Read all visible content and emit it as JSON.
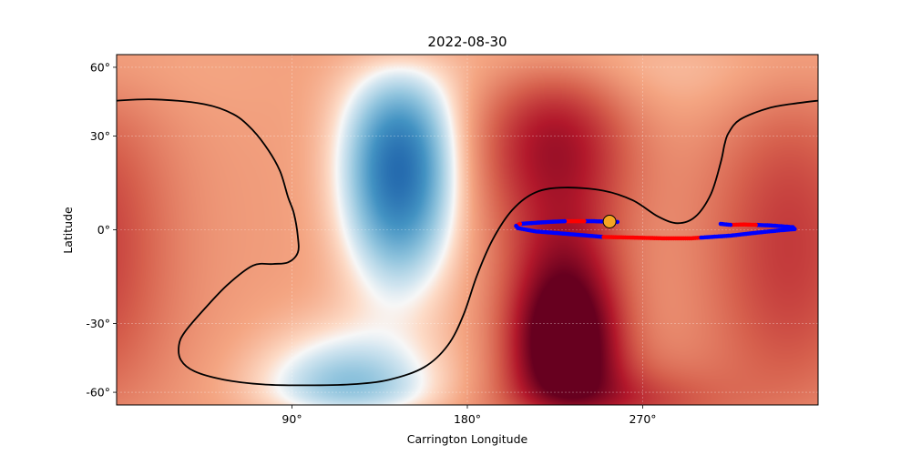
{
  "chart_data": {
    "type": "heatmap",
    "title": "2022-08-30",
    "xlabel": "Carrington Longitude",
    "ylabel": "Latitude",
    "xlim": [
      0,
      360
    ],
    "ylim": [
      -90,
      90
    ],
    "x_ticks": [
      {
        "value": 90,
        "label": "90°"
      },
      {
        "value": 180,
        "label": "180°"
      },
      {
        "value": 270,
        "label": "270°"
      }
    ],
    "y_ticks": [
      {
        "value": 60,
        "label": "60°"
      },
      {
        "value": 30,
        "label": "30°"
      },
      {
        "value": 0,
        "label": "0°"
      },
      {
        "value": -30,
        "label": "-30°"
      },
      {
        "value": -60,
        "label": "-60°"
      }
    ],
    "grid": true,
    "colormap": "RdBu_r",
    "colors": {
      "neutral_line": "#000000",
      "trajectory_positive": "#ff0000",
      "trajectory_negative": "#0000ff",
      "current_position": "#f5a623"
    },
    "field_blobs": [
      {
        "lon": 225,
        "lat": 28,
        "sigma_lon": 28,
        "sigma_lat": 22,
        "amp": 0.55
      },
      {
        "lon": 145,
        "lat": 18,
        "sigma_lon": 20,
        "sigma_lat": 24,
        "amp": -1.0
      },
      {
        "lon": 120,
        "lat": -55,
        "sigma_lon": 32,
        "sigma_lat": 16,
        "amp": -0.55
      },
      {
        "lon": 230,
        "lat": -35,
        "sigma_lon": 20,
        "sigma_lat": 22,
        "amp": 1.0
      },
      {
        "lon": 255,
        "lat": -65,
        "sigma_lon": 40,
        "sigma_lat": 14,
        "amp": 0.35
      },
      {
        "lon": 345,
        "lat": -5,
        "sigma_lon": 30,
        "sigma_lat": 40,
        "amp": 0.35
      },
      {
        "lon": 270,
        "lat": 55,
        "sigma_lon": 90,
        "sigma_lat": 18,
        "amp": -0.12
      }
    ],
    "neutral_line": [
      {
        "lon": 0,
        "lat": 43.5
      },
      {
        "lon": 20,
        "lat": 44
      },
      {
        "lon": 45,
        "lat": 42
      },
      {
        "lon": 60,
        "lat": 38
      },
      {
        "lon": 70,
        "lat": 32
      },
      {
        "lon": 78,
        "lat": 25
      },
      {
        "lon": 84,
        "lat": 18
      },
      {
        "lon": 88,
        "lat": 10
      },
      {
        "lon": 91,
        "lat": 5
      },
      {
        "lon": 93,
        "lat": -2
      },
      {
        "lon": 93,
        "lat": -7
      },
      {
        "lon": 88,
        "lat": -10
      },
      {
        "lon": 80,
        "lat": -10.5
      },
      {
        "lon": 70,
        "lat": -11
      },
      {
        "lon": 57,
        "lat": -17
      },
      {
        "lon": 45,
        "lat": -25
      },
      {
        "lon": 35,
        "lat": -33
      },
      {
        "lon": 32,
        "lat": -38
      },
      {
        "lon": 33,
        "lat": -44
      },
      {
        "lon": 40,
        "lat": -49
      },
      {
        "lon": 55,
        "lat": -53
      },
      {
        "lon": 75,
        "lat": -55.5
      },
      {
        "lon": 95,
        "lat": -56
      },
      {
        "lon": 120,
        "lat": -55.5
      },
      {
        "lon": 140,
        "lat": -53
      },
      {
        "lon": 158,
        "lat": -47
      },
      {
        "lon": 170,
        "lat": -38
      },
      {
        "lon": 178,
        "lat": -27
      },
      {
        "lon": 185,
        "lat": -14
      },
      {
        "lon": 193,
        "lat": -3
      },
      {
        "lon": 203,
        "lat": 6
      },
      {
        "lon": 215,
        "lat": 11.5
      },
      {
        "lon": 230,
        "lat": 13
      },
      {
        "lon": 250,
        "lat": 12
      },
      {
        "lon": 265,
        "lat": 9
      },
      {
        "lon": 278,
        "lat": 4
      },
      {
        "lon": 288,
        "lat": 2
      },
      {
        "lon": 297,
        "lat": 4
      },
      {
        "lon": 305,
        "lat": 11
      },
      {
        "lon": 310,
        "lat": 21
      },
      {
        "lon": 312,
        "lat": 27
      },
      {
        "lon": 314,
        "lat": 31
      },
      {
        "lon": 320,
        "lat": 36
      },
      {
        "lon": 335,
        "lat": 40.5
      },
      {
        "lon": 350,
        "lat": 42.5
      },
      {
        "lon": 360,
        "lat": 43.5
      }
    ],
    "trajectory": [
      {
        "lon": 257,
        "lat": 2.4,
        "polarity": "blue"
      },
      {
        "lon": 245,
        "lat": 2.6,
        "polarity": "blue"
      },
      {
        "lon": 240,
        "lat": 2.6,
        "polarity": "red"
      },
      {
        "lon": 230,
        "lat": 2.6,
        "polarity": "blue"
      },
      {
        "lon": 222,
        "lat": 2.4,
        "polarity": "blue"
      },
      {
        "lon": 212,
        "lat": 2.0,
        "polarity": "blue"
      },
      {
        "lon": 207,
        "lat": 1.8,
        "polarity": "red"
      },
      {
        "lon": 205,
        "lat": 1.2,
        "polarity": "blue"
      },
      {
        "lon": 206,
        "lat": 0.5,
        "polarity": "blue"
      },
      {
        "lon": 215,
        "lat": -0.5,
        "polarity": "blue"
      },
      {
        "lon": 230,
        "lat": -1.2,
        "polarity": "blue"
      },
      {
        "lon": 242,
        "lat": -1.8,
        "polarity": "blue"
      },
      {
        "lon": 250,
        "lat": -2.2,
        "polarity": "red"
      },
      {
        "lon": 265,
        "lat": -2.4,
        "polarity": "red"
      },
      {
        "lon": 280,
        "lat": -2.6,
        "polarity": "red"
      },
      {
        "lon": 295,
        "lat": -2.6,
        "polarity": "red"
      },
      {
        "lon": 300,
        "lat": -2.4,
        "polarity": "blue"
      },
      {
        "lon": 315,
        "lat": -1.8,
        "polarity": "blue"
      },
      {
        "lon": 330,
        "lat": -0.8,
        "polarity": "blue"
      },
      {
        "lon": 340,
        "lat": -0.2,
        "polarity": "blue"
      },
      {
        "lon": 348,
        "lat": 0.2,
        "polarity": "blue"
      },
      {
        "lon": 347,
        "lat": 0.8,
        "polarity": "blue"
      },
      {
        "lon": 336,
        "lat": 1.3,
        "polarity": "blue"
      },
      {
        "lon": 328,
        "lat": 1.5,
        "polarity": "red"
      },
      {
        "lon": 322,
        "lat": 1.6,
        "polarity": "red"
      },
      {
        "lon": 315,
        "lat": 1.5,
        "polarity": "blue"
      },
      {
        "lon": 310,
        "lat": 1.8,
        "polarity": "blue"
      }
    ],
    "current_position": {
      "lon": 253,
      "lat": 2.5
    }
  }
}
